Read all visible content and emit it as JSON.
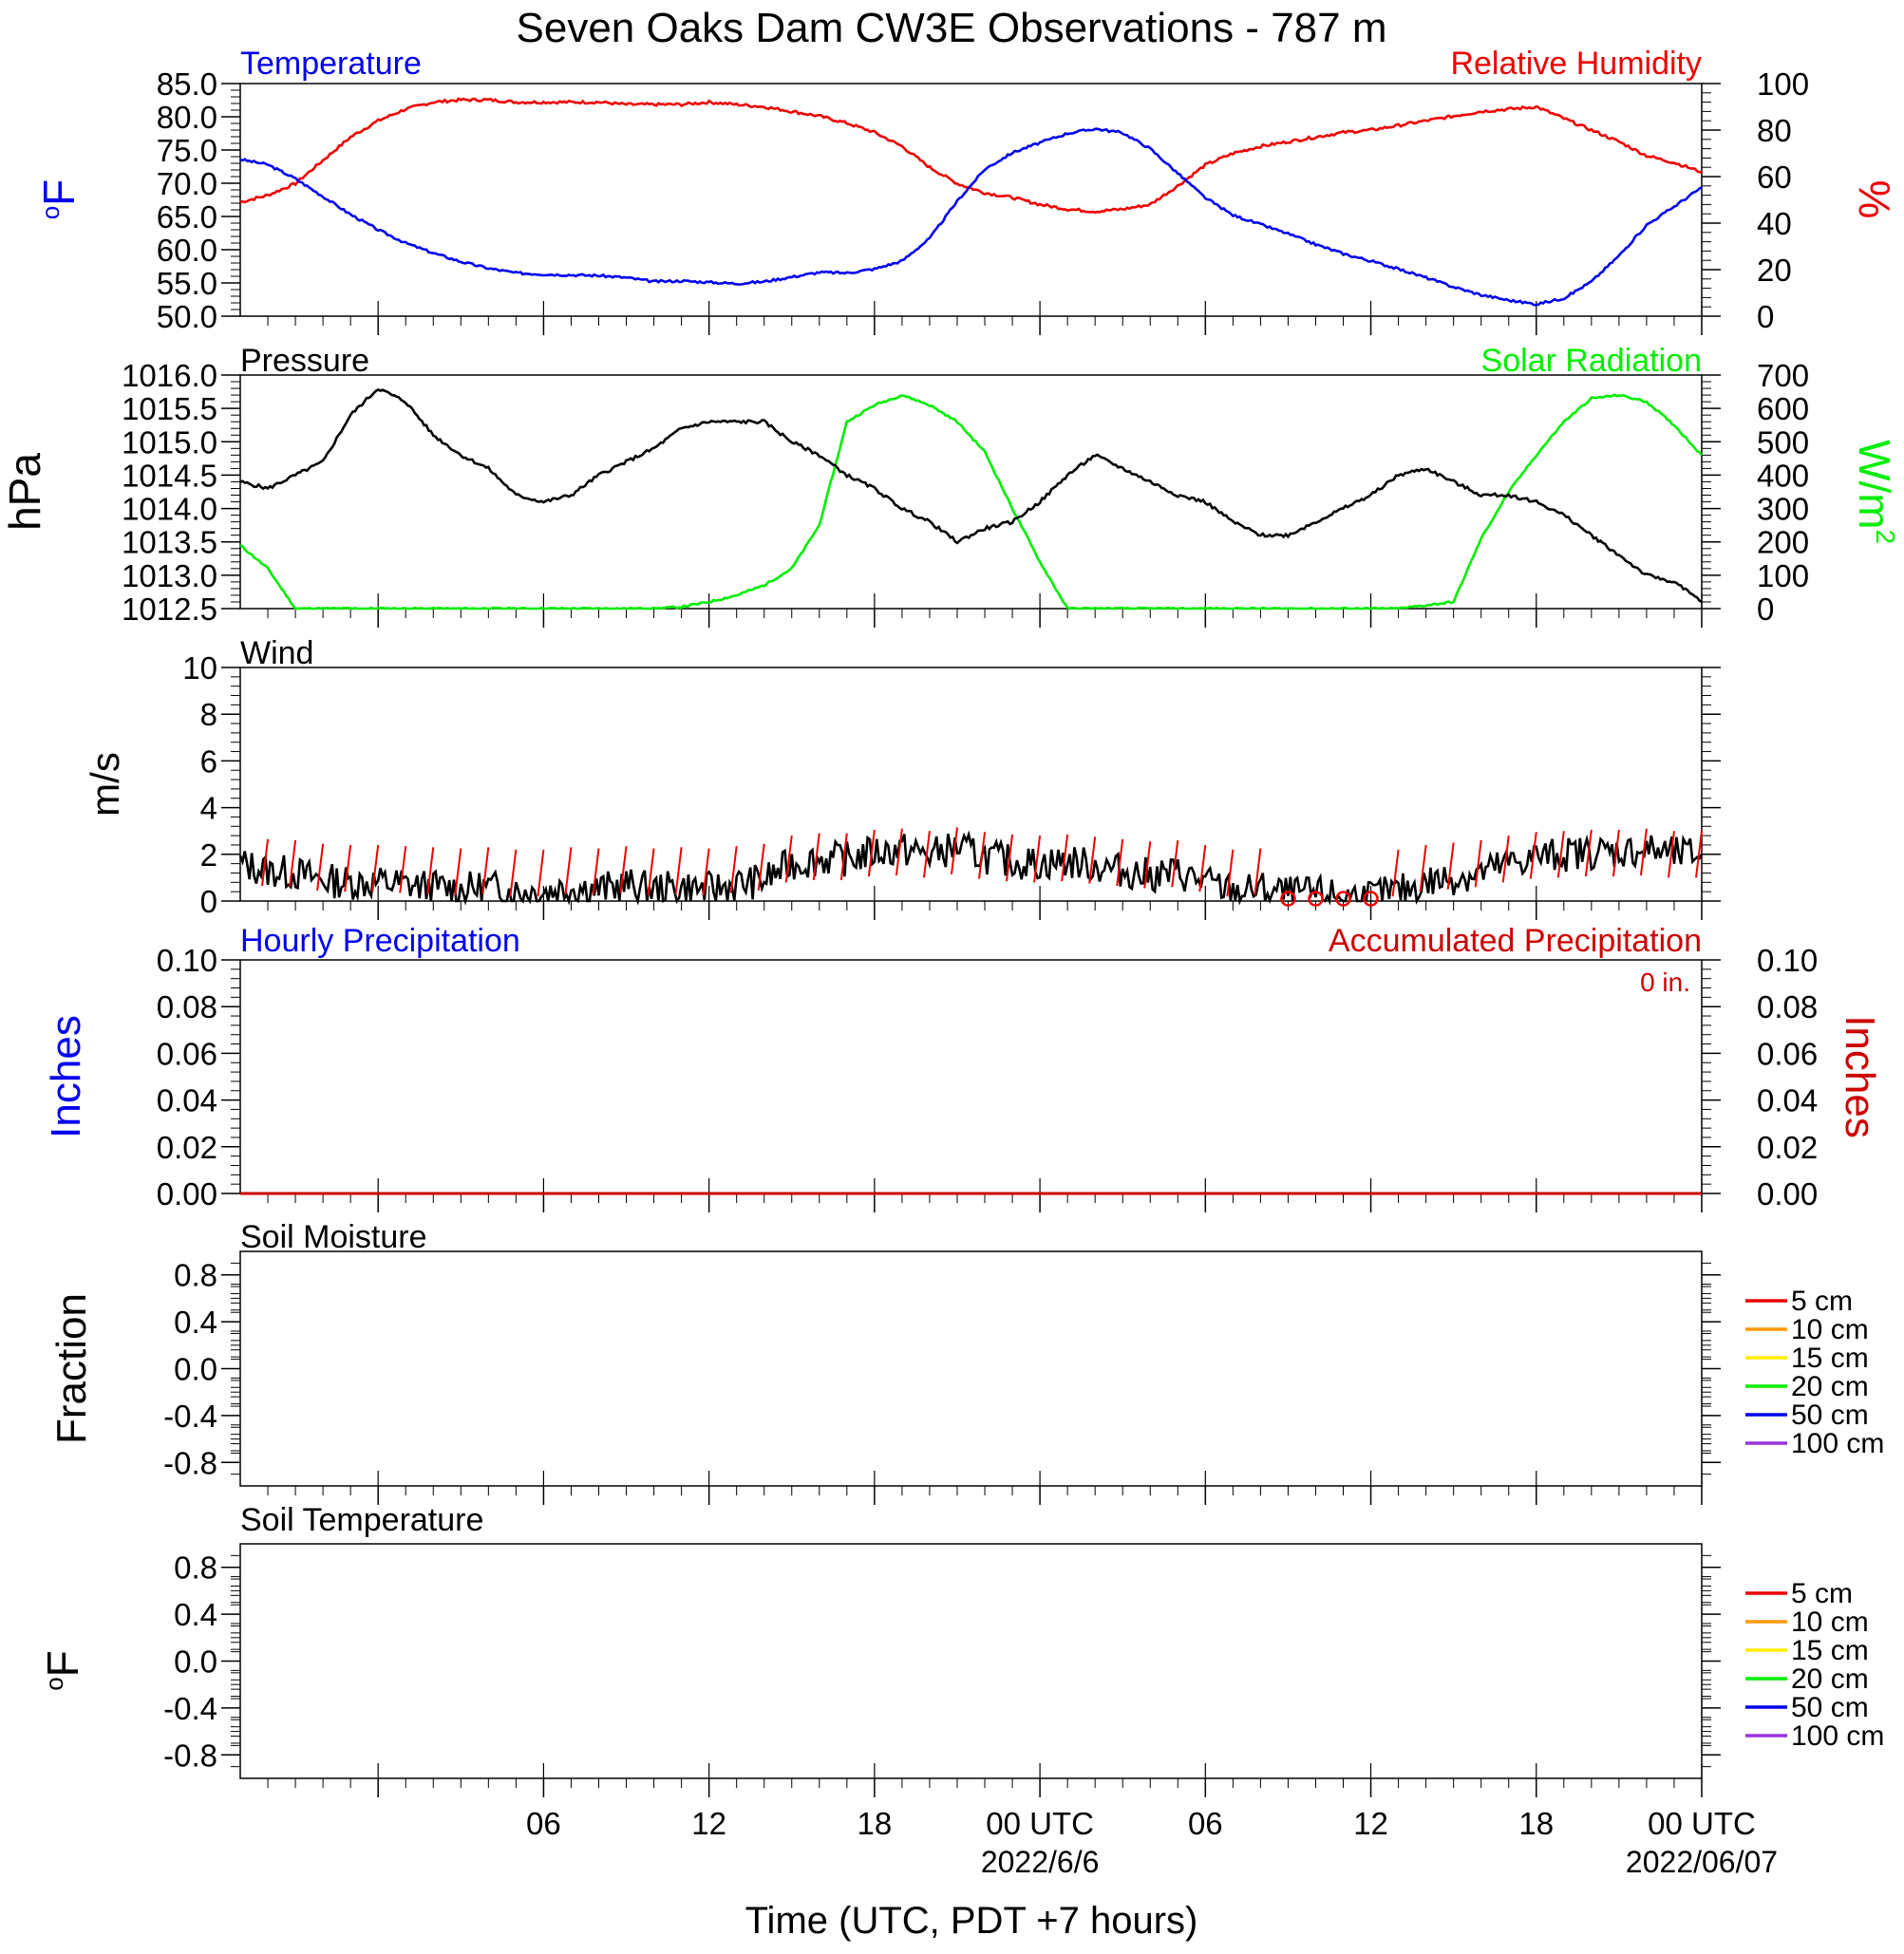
{
  "page": {
    "title": "Seven Oaks Dam CW3E Observations - 787 m",
    "x_axis_label": "Time (UTC, PDT +7 hours)"
  },
  "colors": {
    "temperature": "#0000ee",
    "humidity": "#ee0000",
    "pressure": "#000000",
    "solar": "#00ee00",
    "wind": "#000000",
    "wind_barb": "#ee0000",
    "precip_hourly": "#0000ee",
    "precip_accum": "#cc0000",
    "soil_5": "#ee0000",
    "soil_10": "#ff9900",
    "soil_15": "#ffee00",
    "soil_20": "#00ee00",
    "soil_50": "#0000ee",
    "soil_100": "#9933dd"
  },
  "time_axis": {
    "hour_range": [
      -5,
      48
    ],
    "tick_labels": [
      {
        "hour": 6,
        "label": "06"
      },
      {
        "hour": 12,
        "label": "12"
      },
      {
        "hour": 18,
        "label": "18"
      },
      {
        "hour": 24,
        "label": "00 UTC",
        "sublabel": "2022/6/6"
      },
      {
        "hour": 30,
        "label": "06"
      },
      {
        "hour": 36,
        "label": "12"
      },
      {
        "hour": 42,
        "label": "18"
      },
      {
        "hour": 48,
        "label": "00 UTC",
        "sublabel": "2022/06/07"
      }
    ]
  },
  "panels": {
    "temp_rh": {
      "left_title": "Temperature",
      "right_title": "Relative Humidity",
      "left_unit": "oF",
      "right_unit": "%",
      "left_ticks": [
        "50.0",
        "55.0",
        "60.0",
        "65.0",
        "70.0",
        "75.0",
        "80.0",
        "85.0"
      ],
      "right_ticks": [
        "0",
        "20",
        "40",
        "60",
        "80",
        "100"
      ]
    },
    "press_solar": {
      "left_title": "Pressure",
      "right_title": "Solar Radiation",
      "left_unit": "hPa",
      "right_unit": "W/m",
      "right_unit_sup": "2",
      "left_ticks": [
        "1012.5",
        "1013.0",
        "1013.5",
        "1014.0",
        "1014.5",
        "1015.0",
        "1015.5",
        "1016.0"
      ],
      "right_ticks": [
        "0",
        "100",
        "200",
        "300",
        "400",
        "500",
        "600",
        "700"
      ]
    },
    "wind": {
      "left_title": "Wind",
      "left_unit": "m/s",
      "left_ticks": [
        "0",
        "2",
        "4",
        "6",
        "8",
        "10"
      ]
    },
    "precip": {
      "left_title": "Hourly Precipitation",
      "right_title": "Accumulated Precipitation",
      "total_label": "0 in.",
      "left_unit": "Inches",
      "right_unit": "Inches",
      "left_ticks": [
        "0.00",
        "0.02",
        "0.04",
        "0.06",
        "0.08",
        "0.10"
      ],
      "right_ticks": [
        "0.00",
        "0.02",
        "0.04",
        "0.06",
        "0.08",
        "0.10"
      ]
    },
    "soil_moist": {
      "left_title": "Soil Moisture",
      "left_unit": "Fraction",
      "left_ticks": [
        "-0.8",
        "-0.4",
        "0.0",
        "0.4",
        "0.8"
      ],
      "legend": [
        "5 cm",
        "10 cm",
        "15 cm",
        "20 cm",
        "50 cm",
        "100 cm"
      ]
    },
    "soil_temp": {
      "left_title": "Soil Temperature",
      "left_unit": "oF",
      "left_ticks": [
        "-0.8",
        "-0.4",
        "0.0",
        "0.4",
        "0.8"
      ],
      "legend": [
        "5 cm",
        "10 cm",
        "15 cm",
        "20 cm",
        "50 cm",
        "100 cm"
      ]
    }
  },
  "chart_data": [
    {
      "type": "line",
      "title": "Temperature",
      "ylabel": "oF",
      "ylim": [
        50,
        85
      ],
      "x_units": "hours from 2022-06-05 00 UTC",
      "series": [
        {
          "name": "Temperature",
          "x": [
            -5,
            -4,
            -3,
            -2,
            -1,
            0,
            1,
            2,
            3,
            4,
            5,
            6,
            7,
            8,
            9,
            10,
            11,
            12,
            13,
            14,
            15,
            16,
            17,
            18,
            19,
            20,
            21,
            22,
            23,
            24,
            25,
            26,
            27,
            28,
            29,
            30,
            31,
            32,
            33,
            34,
            35,
            36,
            37,
            38,
            39,
            40,
            41,
            42,
            43,
            44,
            45,
            46,
            47,
            48
          ],
          "y": [
            73.6,
            72.8,
            70.7,
            68.0,
            65.3,
            63.0,
            61.0,
            59.5,
            58.2,
            57.2,
            56.5,
            56.3,
            56.2,
            56.1,
            55.8,
            55.2,
            55.3,
            55.1,
            54.9,
            55.2,
            55.9,
            56.6,
            56.5,
            57.1,
            58.3,
            61.7,
            67.3,
            72.1,
            74.6,
            76.1,
            77.5,
            78.2,
            77.6,
            75.2,
            71.5,
            67.8,
            65.2,
            63.8,
            62.4,
            60.8,
            59.4,
            58.3,
            57.1,
            55.8,
            54.4,
            53.2,
            52.4,
            51.8,
            52.7,
            55.2,
            59.1,
            63.7,
            66.5,
            69.4
          ]
        }
      ]
    },
    {
      "type": "line",
      "title": "Relative Humidity",
      "ylabel": "%",
      "ylim": [
        0,
        100
      ],
      "x_units": "hours from 2022-06-05 00 UTC",
      "series": [
        {
          "name": "Relative Humidity",
          "x": [
            -5,
            -4,
            -3,
            -2,
            -1,
            0,
            1,
            2,
            3,
            4,
            5,
            6,
            7,
            8,
            9,
            10,
            11,
            12,
            13,
            14,
            15,
            16,
            17,
            18,
            19,
            20,
            21,
            22,
            23,
            24,
            25,
            26,
            27,
            28,
            29,
            30,
            31,
            32,
            33,
            34,
            35,
            36,
            37,
            38,
            39,
            40,
            41,
            42,
            43,
            44,
            45,
            46,
            47,
            48
          ],
          "y": [
            49,
            52,
            57,
            67,
            77,
            84,
            89,
            92,
            93,
            93,
            92,
            92,
            92,
            92,
            91,
            91,
            91,
            92,
            91,
            90,
            88,
            86,
            83,
            79,
            73,
            64,
            57,
            53,
            51,
            48,
            46,
            45,
            46,
            48,
            56,
            65,
            70,
            73,
            75,
            77,
            79,
            80,
            82,
            84,
            86,
            88,
            89,
            90,
            85,
            80,
            75,
            69,
            66,
            62
          ]
        }
      ]
    },
    {
      "type": "line",
      "title": "Pressure",
      "ylabel": "hPa",
      "ylim": [
        1012.5,
        1016.0
      ],
      "x_units": "hours from 2022-06-05 00 UTC",
      "series": [
        {
          "name": "Pressure",
          "x": [
            -5,
            -4,
            -3,
            -2,
            -1,
            0,
            1,
            2,
            3,
            4,
            5,
            6,
            7,
            8,
            9,
            10,
            11,
            12,
            13,
            14,
            15,
            16,
            17,
            18,
            19,
            20,
            21,
            22,
            23,
            24,
            25,
            26,
            27,
            28,
            29,
            30,
            31,
            32,
            33,
            34,
            35,
            36,
            37,
            38,
            39,
            40,
            41,
            42,
            43,
            44,
            45,
            46,
            47,
            48
          ],
          "y": [
            1014.4,
            1014.3,
            1014.5,
            1014.7,
            1015.4,
            1015.8,
            1015.6,
            1015.1,
            1014.8,
            1014.6,
            1014.2,
            1014.1,
            1014.2,
            1014.5,
            1014.7,
            1014.9,
            1015.2,
            1015.3,
            1015.3,
            1015.3,
            1015.0,
            1014.8,
            1014.5,
            1014.3,
            1014.0,
            1013.8,
            1013.5,
            1013.7,
            1013.8,
            1014.1,
            1014.5,
            1014.8,
            1014.6,
            1014.4,
            1014.2,
            1014.1,
            1013.8,
            1013.6,
            1013.6,
            1013.8,
            1014.0,
            1014.2,
            1014.5,
            1014.6,
            1014.4,
            1014.2,
            1014.2,
            1014.1,
            1013.9,
            1013.6,
            1013.3,
            1013.0,
            1012.9,
            1012.6
          ]
        }
      ]
    },
    {
      "type": "line",
      "title": "Solar Radiation",
      "ylabel": "W/m2",
      "ylim": [
        0,
        700
      ],
      "x_units": "hours from 2022-06-05 00 UTC",
      "series": [
        {
          "name": "Solar Radiation",
          "x": [
            -5,
            -4,
            -3,
            -2,
            -1,
            0,
            1,
            2,
            3,
            4,
            5,
            6,
            7,
            8,
            9,
            10,
            11,
            12,
            13,
            14,
            15,
            16,
            17,
            18,
            19,
            20,
            21,
            22,
            23,
            24,
            25,
            26,
            27,
            28,
            29,
            30,
            31,
            32,
            33,
            34,
            35,
            36,
            37,
            38,
            39,
            40,
            41,
            42,
            43,
            44,
            45,
            46,
            47,
            48
          ],
          "y": [
            190,
            120,
            0,
            0,
            0,
            0,
            0,
            0,
            0,
            0,
            0,
            0,
            0,
            0,
            0,
            0,
            5,
            20,
            40,
            70,
            120,
            250,
            560,
            610,
            640,
            610,
            560,
            470,
            300,
            140,
            0,
            0,
            0,
            0,
            0,
            0,
            0,
            0,
            0,
            0,
            0,
            0,
            0,
            10,
            20,
            210,
            350,
            460,
            560,
            630,
            640,
            620,
            550,
            460
          ]
        }
      ]
    },
    {
      "type": "line",
      "title": "Wind",
      "ylabel": "m/s",
      "ylim": [
        0,
        10
      ],
      "x_units": "hours from 2022-06-05 00 UTC",
      "series": [
        {
          "name": "Wind",
          "x": [
            -5,
            -4,
            -3,
            -2,
            -1,
            0,
            1,
            2,
            3,
            4,
            5,
            6,
            7,
            8,
            9,
            10,
            11,
            12,
            13,
            14,
            15,
            16,
            17,
            18,
            19,
            20,
            21,
            22,
            23,
            24,
            25,
            26,
            27,
            28,
            29,
            30,
            31,
            32,
            33,
            34,
            35,
            36,
            37,
            38,
            39,
            40,
            41,
            42,
            43,
            44,
            45,
            46,
            47,
            48
          ],
          "y": [
            1.6,
            1.3,
            1.2,
            0.9,
            0.8,
            0.8,
            0.7,
            0.6,
            0.5,
            0.6,
            0.4,
            0.4,
            0.6,
            0.5,
            0.7,
            0.5,
            0.6,
            0.5,
            0.7,
            0.9,
            1.6,
            1.8,
            1.8,
            2.1,
            2.2,
            2.0,
            2.3,
            1.9,
            1.7,
            1.6,
            1.7,
            1.5,
            1.3,
            1.1,
            1.2,
            0.8,
            0.4,
            0.5,
            0.3,
            0.3,
            0.2,
            0.2,
            0.4,
            0.8,
            1.0,
            1.2,
            1.6,
            1.9,
            2.0,
            2.1,
            2.1,
            2.2,
            2.0,
            2.0
          ]
        }
      ]
    },
    {
      "type": "line",
      "title": "Hourly Precipitation",
      "ylabel": "Inches",
      "ylim": [
        0,
        0.1
      ],
      "x_units": "hours from 2022-06-05 00 UTC",
      "series": [
        {
          "name": "Hourly Precipitation",
          "x": [
            -5,
            48
          ],
          "y": [
            0,
            0
          ]
        },
        {
          "name": "Accumulated Precipitation",
          "x": [
            -5,
            48
          ],
          "y": [
            0,
            0
          ]
        }
      ]
    },
    {
      "type": "line",
      "title": "Soil Moisture",
      "ylabel": "Fraction",
      "ylim": [
        -1,
        1
      ],
      "series": []
    },
    {
      "type": "line",
      "title": "Soil Temperature",
      "ylabel": "oF",
      "ylim": [
        -1,
        1
      ],
      "series": []
    }
  ]
}
